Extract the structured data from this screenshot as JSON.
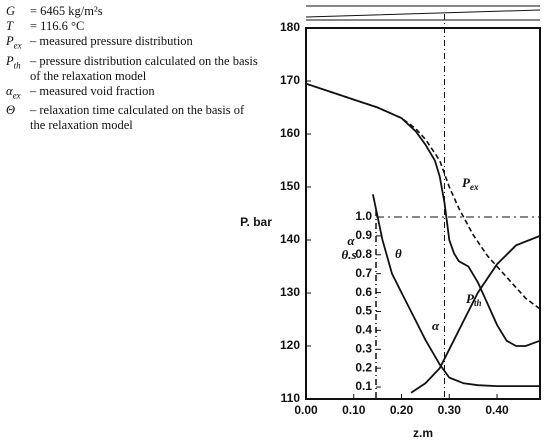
{
  "chart_data": {
    "type": "line",
    "legend_items": [
      {
        "symbol": "G",
        "text": "= 6465 kg/m²s"
      },
      {
        "symbol": "T",
        "text": "= 116.6 °C"
      },
      {
        "symbol": "P",
        "sub": "ex",
        "text": "– measured pressure distribution"
      },
      {
        "symbol": "P",
        "sub": "th",
        "text": "– pressure distribution calculated on the basis of the relaxation model"
      },
      {
        "symbol": "α",
        "sub": "ex",
        "text": "– measured void fraction"
      },
      {
        "symbol": "Θ",
        "text": "– relaxation time calculated on the basis of the relaxation model"
      }
    ],
    "xlabel": "z.m",
    "ylabel": "P. bar",
    "y2label_top": "α",
    "y2label_bottom": "θ.s",
    "xlim": [
      0,
      0.49
    ],
    "xticks": [
      {
        "value": 0,
        "label": "0.00"
      },
      {
        "value": 0.1,
        "label": "0.10"
      },
      {
        "value": 0.2,
        "label": "0.20"
      },
      {
        "value": 0.3,
        "label": "0.30"
      },
      {
        "value": 0.4,
        "label": "0.40"
      }
    ],
    "ylim": [
      110,
      180
    ],
    "yticks": [
      110,
      120,
      130,
      140,
      150,
      160,
      170,
      180
    ],
    "y2lim": [
      0.05,
      1.0
    ],
    "y2ticks": [
      0.1,
      0.2,
      0.3,
      0.4,
      0.5,
      0.6,
      0.7,
      0.8,
      0.9,
      {
        "value": 1.0,
        "label": "1.0"
      }
    ],
    "series": [
      {
        "name": "P th",
        "label_main": "P",
        "label_sub": "th",
        "color": "#111",
        "dash": false,
        "axis": "y",
        "x": [
          0,
          0.05,
          0.1,
          0.15,
          0.2,
          0.23,
          0.25,
          0.27,
          0.28,
          0.29,
          0.3,
          0.31,
          0.32,
          0.34,
          0.36,
          0.38,
          0.4,
          0.42,
          0.44,
          0.46,
          0.49
        ],
        "values": [
          169.5,
          168,
          166.5,
          165,
          163,
          160.5,
          158,
          155,
          152,
          147,
          140,
          137.5,
          136,
          135,
          132,
          128,
          124,
          121,
          120,
          120,
          121
        ]
      },
      {
        "name": "P ex",
        "label_main": "P",
        "label_sub": "ex",
        "color": "#111",
        "dash": true,
        "axis": "y",
        "x": [
          0,
          0.05,
          0.1,
          0.15,
          0.2,
          0.23,
          0.25,
          0.28,
          0.3,
          0.32,
          0.35,
          0.38,
          0.42,
          0.46,
          0.49
        ],
        "values": [
          169.5,
          168,
          166.5,
          165,
          163,
          161,
          159,
          155,
          150,
          146,
          141,
          137,
          133,
          129,
          127
        ]
      },
      {
        "name": "θ",
        "color": "#111",
        "dash": false,
        "axis": "y2",
        "x": [
          0.14,
          0.16,
          0.18,
          0.2,
          0.22,
          0.25,
          0.28,
          0.3,
          0.33,
          0.36,
          0.4,
          0.45,
          0.49
        ],
        "values": [
          1.12,
          0.88,
          0.7,
          0.6,
          0.5,
          0.35,
          0.22,
          0.15,
          0.12,
          0.11,
          0.105,
          0.105,
          0.105
        ]
      },
      {
        "name": "α",
        "color": "#111",
        "dash": false,
        "axis": "y2",
        "x": [
          0.22,
          0.25,
          0.28,
          0.3,
          0.33,
          0.36,
          0.4,
          0.44,
          0.49
        ],
        "values": [
          0.07,
          0.12,
          0.2,
          0.3,
          0.45,
          0.6,
          0.75,
          0.85,
          0.9
        ]
      }
    ],
    "grid": false
  }
}
